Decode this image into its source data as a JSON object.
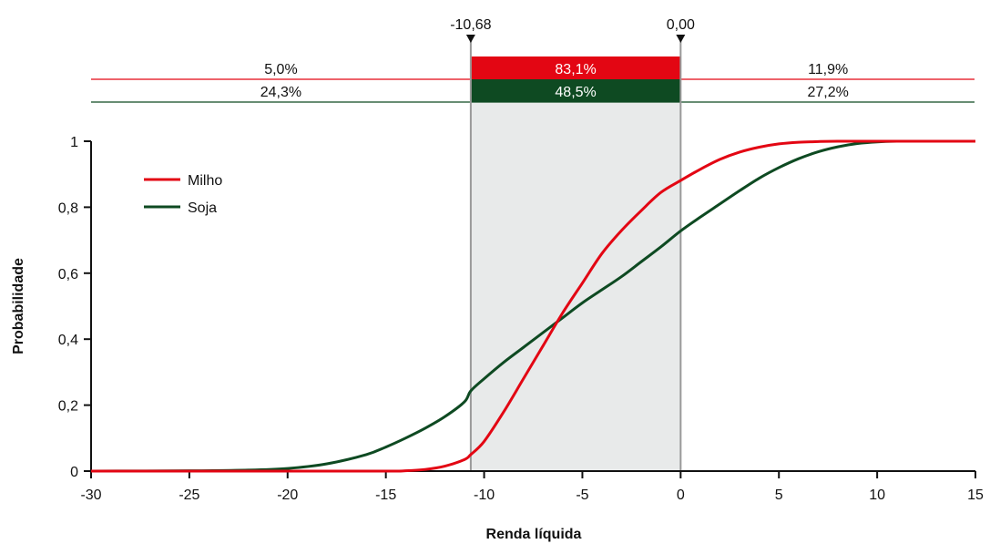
{
  "chart_data": {
    "type": "line",
    "xlabel": "Renda líquida",
    "ylabel": "Probabilidade",
    "xlim": [
      -30,
      15
    ],
    "ylim": [
      0,
      1
    ],
    "x_ticks": [
      -30,
      -25,
      -20,
      -15,
      -10,
      -5,
      0,
      5,
      10,
      15
    ],
    "x_tick_labels": [
      "-30",
      "-25",
      "-20",
      "-15",
      "-10",
      "-5",
      "0",
      "5",
      "10",
      "15"
    ],
    "y_ticks": [
      0,
      0.2,
      0.4,
      0.6,
      0.8,
      1
    ],
    "y_tick_labels": [
      "0",
      "0,2",
      "0,4",
      "0,6",
      "0,8",
      "1"
    ],
    "legend_position": "upper-left",
    "markers": [
      {
        "x": -10.68,
        "label": "-10,68"
      },
      {
        "x": 0,
        "label": "0,00"
      }
    ],
    "series": [
      {
        "name": "Milho",
        "color": "#e30613",
        "x": [
          -30,
          -25,
          -20,
          -15,
          -14,
          -13,
          -12,
          -11,
          -10.68,
          -10,
          -9,
          -8,
          -7,
          -6,
          -5,
          -4,
          -3,
          -2,
          -1,
          0,
          1,
          2,
          3,
          4,
          5,
          6,
          7,
          8,
          10,
          12,
          15
        ],
        "y": [
          0,
          0,
          0,
          0,
          0.001,
          0.005,
          0.015,
          0.035,
          0.05,
          0.09,
          0.18,
          0.28,
          0.38,
          0.48,
          0.57,
          0.66,
          0.73,
          0.79,
          0.845,
          0.881,
          0.915,
          0.945,
          0.967,
          0.982,
          0.992,
          0.997,
          0.999,
          1,
          1,
          1,
          1
        ]
      },
      {
        "name": "Soja",
        "color": "#0e4a22",
        "x": [
          -30,
          -25,
          -22,
          -20,
          -18,
          -16,
          -15,
          -14,
          -13,
          -12,
          -11,
          -10.68,
          -10,
          -9,
          -8,
          -7,
          -6,
          -5,
          -4,
          -3,
          -2,
          -1,
          0,
          1,
          2,
          3,
          4,
          5,
          6,
          7,
          8,
          9,
          10,
          11,
          12,
          13,
          15
        ],
        "y": [
          0,
          0.001,
          0.003,
          0.008,
          0.022,
          0.05,
          0.073,
          0.1,
          0.13,
          0.165,
          0.21,
          0.243,
          0.28,
          0.33,
          0.375,
          0.42,
          0.465,
          0.51,
          0.55,
          0.59,
          0.635,
          0.68,
          0.728,
          0.77,
          0.81,
          0.85,
          0.888,
          0.92,
          0.947,
          0.968,
          0.983,
          0.993,
          0.998,
          1,
          1,
          1,
          1
        ]
      }
    ],
    "interval_bands": [
      {
        "series": "Milho",
        "color": "#e30613",
        "values": [
          "5,0%",
          "83,1%",
          "11,9%"
        ]
      },
      {
        "series": "Soja",
        "color": "#0e4a22",
        "values": [
          "24,3%",
          "48,5%",
          "27,2%"
        ]
      }
    ]
  }
}
